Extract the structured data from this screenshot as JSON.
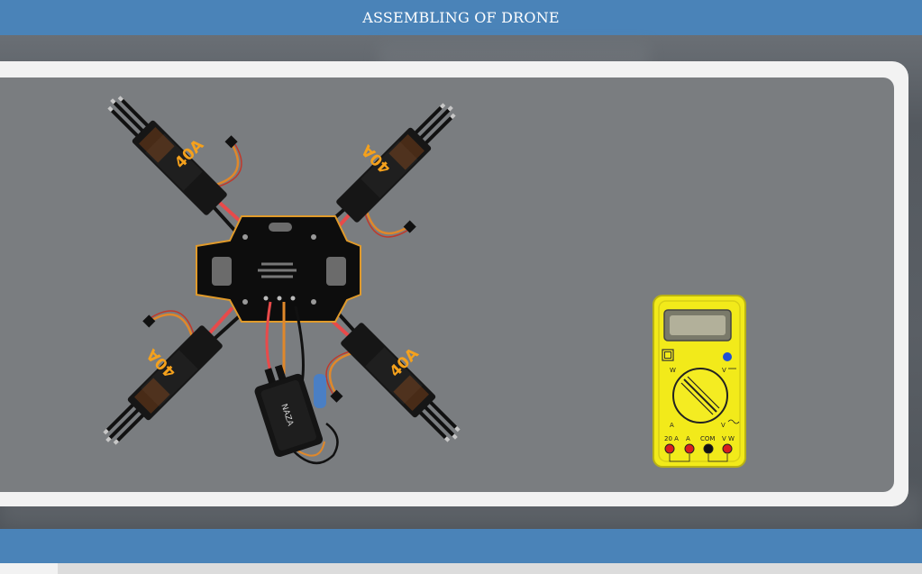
{
  "header": {
    "title": "ASSEMBLING OF DRONE"
  },
  "esc_label": "40A",
  "flight_controller_label": "NAZA",
  "multimeter": {
    "port_labels": [
      "20 A",
      "A",
      "COM",
      "V W"
    ],
    "dial_labels": {
      "w": "W",
      "v": "V",
      "a": "A",
      "v_ac": "V"
    }
  },
  "colors": {
    "header_bg": "#4a83b8",
    "stage_bg": "#7a7d80",
    "multimeter_body": "#f2ea1a"
  }
}
